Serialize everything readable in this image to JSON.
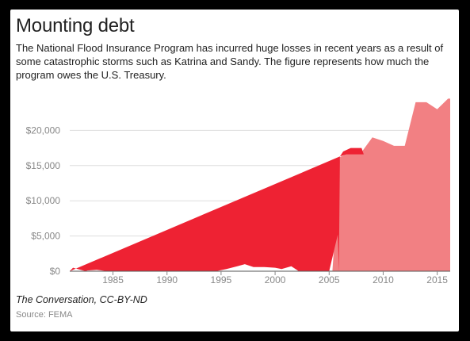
{
  "title": "Mounting debt",
  "subtitle": "The National Flood Insurance Program has incurred huge losses in recent years as a result of some catastrophic storms such as Katrina and Sandy. The figure represents how much the program owes the U.S. Treasury.",
  "credit": "The Conversation, CC-BY-ND",
  "source": "Source: FEMA",
  "colors": {
    "area": "#f28083",
    "highlight": "#ee2233",
    "grid": "#dddddd"
  },
  "chart_data": {
    "type": "area",
    "xlim": [
      1981,
      2016.2
    ],
    "ylim": [
      0,
      25000
    ],
    "x_ticks": [
      1985,
      1990,
      1995,
      2000,
      2005,
      2010,
      2015
    ],
    "y_ticks": [
      0,
      5000,
      10000,
      15000,
      20000
    ],
    "y_tick_labels": [
      "$0",
      "$5,000",
      "$10,000",
      "$15,000",
      "$20,000"
    ],
    "grid": true,
    "series": [
      {
        "role": "debt-area",
        "points": [
          [
            1981,
            0
          ],
          [
            2005.3,
            0
          ],
          [
            2006,
            16200
          ],
          [
            2007,
            16900
          ],
          [
            2008,
            16900
          ],
          [
            2009,
            19000
          ],
          [
            2010,
            18500
          ],
          [
            2011,
            17800
          ],
          [
            2012,
            17800
          ],
          [
            2013,
            24000
          ],
          [
            2014,
            24000
          ],
          [
            2015,
            23000
          ],
          [
            2016,
            24500
          ],
          [
            2016.2,
            24500
          ],
          [
            2016.2,
            0
          ]
        ]
      },
      {
        "role": "borrowing-highlight",
        "points": [
          [
            1981,
            0
          ],
          [
            1981.3,
            500
          ],
          [
            1982,
            200
          ],
          [
            1982.5,
            0
          ],
          [
            1982.6,
            100
          ],
          [
            1983.5,
            200
          ],
          [
            1984.5,
            0
          ],
          [
            1994.5,
            0
          ],
          [
            1995.5,
            300
          ],
          [
            1996.5,
            700
          ],
          [
            1997.2,
            1000
          ],
          [
            1998,
            600
          ],
          [
            1999,
            600
          ],
          [
            2000,
            500
          ],
          [
            2000.6,
            300
          ],
          [
            2001.5,
            700
          ],
          [
            2002.2,
            0
          ],
          [
            2005,
            0
          ],
          [
            2005.8,
            5200
          ],
          [
            2005.9,
            0
          ],
          [
            2006,
            16300
          ],
          [
            2006.3,
            17000
          ],
          [
            2007,
            17500
          ],
          [
            2008,
            17500
          ],
          [
            2008.2,
            16600
          ],
          [
            2007,
            16600
          ],
          [
            2006.6,
            16600
          ],
          [
            2006,
            16300
          ]
        ]
      }
    ]
  }
}
